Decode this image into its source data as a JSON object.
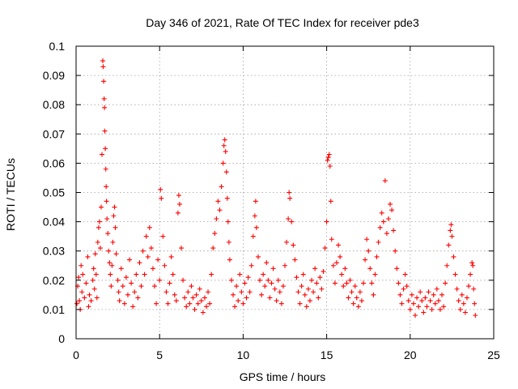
{
  "chart_data": {
    "type": "scatter",
    "title": "Day 346 of 2021, Rate Of TEC Index for receiver pde3",
    "xlabel": "GPS time / hours",
    "ylabel": "ROTI / TECUs",
    "xlim": [
      0,
      25
    ],
    "ylim": [
      0,
      0.1
    ],
    "xticks": [
      0,
      5,
      10,
      15,
      20,
      25
    ],
    "xtick_labels": [
      "0",
      "5",
      "10",
      "15",
      "20",
      "25"
    ],
    "yticks": [
      0,
      0.01,
      0.02,
      0.03,
      0.04,
      0.05,
      0.06,
      0.07,
      0.08,
      0.09,
      0.1
    ],
    "ytick_labels": [
      "0",
      "0.01",
      "0.02",
      "0.03",
      "0.04",
      "0.05",
      "0.06",
      "0.07",
      "0.08",
      "0.09",
      "0.1"
    ],
    "grid": true,
    "marker": "plus",
    "color": "#ff0000",
    "series": [
      {
        "points": [
          [
            0.05,
            0.012
          ],
          [
            0.1,
            0.018
          ],
          [
            0.15,
            0.021
          ],
          [
            0.2,
            0.013
          ],
          [
            0.25,
            0.01
          ],
          [
            0.3,
            0.025
          ],
          [
            0.35,
            0.016
          ],
          [
            0.4,
            0.022
          ],
          [
            0.5,
            0.014
          ],
          [
            0.6,
            0.019
          ],
          [
            0.7,
            0.028
          ],
          [
            0.75,
            0.011
          ],
          [
            0.8,
            0.015
          ],
          [
            0.9,
            0.013
          ],
          [
            1.0,
            0.02
          ],
          [
            1.05,
            0.024
          ],
          [
            1.1,
            0.017
          ],
          [
            1.15,
            0.029
          ],
          [
            1.2,
            0.022
          ],
          [
            1.25,
            0.014
          ],
          [
            1.3,
            0.033
          ],
          [
            1.35,
            0.038
          ],
          [
            1.4,
            0.04
          ],
          [
            1.45,
            0.031
          ],
          [
            1.5,
            0.045
          ],
          [
            1.55,
            0.063
          ],
          [
            1.6,
            0.095
          ],
          [
            1.62,
            0.093
          ],
          [
            1.65,
            0.088
          ],
          [
            1.68,
            0.082
          ],
          [
            1.7,
            0.079
          ],
          [
            1.72,
            0.071
          ],
          [
            1.75,
            0.065
          ],
          [
            1.78,
            0.058
          ],
          [
            1.8,
            0.052
          ],
          [
            1.82,
            0.047
          ],
          [
            1.85,
            0.041
          ],
          [
            1.9,
            0.036
          ],
          [
            1.95,
            0.03
          ],
          [
            2.0,
            0.026
          ],
          [
            2.05,
            0.022
          ],
          [
            2.1,
            0.018
          ],
          [
            2.15,
            0.025
          ],
          [
            2.2,
            0.033
          ],
          [
            2.25,
            0.042
          ],
          [
            2.3,
            0.045
          ],
          [
            2.35,
            0.038
          ],
          [
            2.4,
            0.029
          ],
          [
            2.5,
            0.02
          ],
          [
            2.55,
            0.016
          ],
          [
            2.6,
            0.013
          ],
          [
            2.7,
            0.024
          ],
          [
            2.8,
            0.018
          ],
          [
            2.9,
            0.012
          ],
          [
            3.0,
            0.021
          ],
          [
            3.1,
            0.015
          ],
          [
            3.2,
            0.027
          ],
          [
            3.3,
            0.019
          ],
          [
            3.4,
            0.011
          ],
          [
            3.5,
            0.016
          ],
          [
            3.6,
            0.022
          ],
          [
            3.7,
            0.014
          ],
          [
            3.8,
            0.026
          ],
          [
            3.9,
            0.018
          ],
          [
            4.0,
            0.03
          ],
          [
            4.1,
            0.022
          ],
          [
            4.2,
            0.035
          ],
          [
            4.3,
            0.028
          ],
          [
            4.4,
            0.038
          ],
          [
            4.5,
            0.031
          ],
          [
            4.6,
            0.024
          ],
          [
            4.7,
            0.018
          ],
          [
            4.8,
            0.012
          ],
          [
            4.9,
            0.027
          ],
          [
            5.0,
            0.02
          ],
          [
            5.05,
            0.051
          ],
          [
            5.1,
            0.048
          ],
          [
            5.2,
            0.035
          ],
          [
            5.3,
            0.025
          ],
          [
            5.4,
            0.016
          ],
          [
            5.5,
            0.012
          ],
          [
            5.6,
            0.019
          ],
          [
            5.7,
            0.028
          ],
          [
            5.8,
            0.022
          ],
          [
            5.9,
            0.015
          ],
          [
            6.0,
            0.013
          ],
          [
            6.1,
            0.043
          ],
          [
            6.15,
            0.049
          ],
          [
            6.2,
            0.046
          ],
          [
            6.3,
            0.031
          ],
          [
            6.4,
            0.02
          ],
          [
            6.5,
            0.014
          ],
          [
            6.6,
            0.011
          ],
          [
            6.7,
            0.016
          ],
          [
            6.8,
            0.012
          ],
          [
            6.9,
            0.018
          ],
          [
            7.0,
            0.014
          ],
          [
            7.1,
            0.01
          ],
          [
            7.2,
            0.015
          ],
          [
            7.3,
            0.012
          ],
          [
            7.4,
            0.017
          ],
          [
            7.5,
            0.013
          ],
          [
            7.6,
            0.009
          ],
          [
            7.7,
            0.014
          ],
          [
            7.8,
            0.011
          ],
          [
            7.9,
            0.016
          ],
          [
            8.0,
            0.012
          ],
          [
            8.1,
            0.022
          ],
          [
            8.2,
            0.031
          ],
          [
            8.3,
            0.036
          ],
          [
            8.4,
            0.041
          ],
          [
            8.5,
            0.047
          ],
          [
            8.6,
            0.044
          ],
          [
            8.7,
            0.052
          ],
          [
            8.8,
            0.06
          ],
          [
            8.85,
            0.066
          ],
          [
            8.9,
            0.068
          ],
          [
            8.95,
            0.064
          ],
          [
            9.0,
            0.057
          ],
          [
            9.05,
            0.048
          ],
          [
            9.1,
            0.04
          ],
          [
            9.15,
            0.033
          ],
          [
            9.2,
            0.027
          ],
          [
            9.3,
            0.02
          ],
          [
            9.4,
            0.015
          ],
          [
            9.5,
            0.011
          ],
          [
            9.6,
            0.018
          ],
          [
            9.7,
            0.013
          ],
          [
            9.8,
            0.022
          ],
          [
            9.9,
            0.016
          ],
          [
            10.0,
            0.012
          ],
          [
            10.1,
            0.019
          ],
          [
            10.2,
            0.014
          ],
          [
            10.3,
            0.021
          ],
          [
            10.4,
            0.016
          ],
          [
            10.5,
            0.025
          ],
          [
            10.6,
            0.035
          ],
          [
            10.7,
            0.042
          ],
          [
            10.75,
            0.047
          ],
          [
            10.8,
            0.038
          ],
          [
            10.9,
            0.028
          ],
          [
            11.0,
            0.02
          ],
          [
            11.1,
            0.015
          ],
          [
            11.2,
            0.022
          ],
          [
            11.3,
            0.018
          ],
          [
            11.4,
            0.026
          ],
          [
            11.5,
            0.02
          ],
          [
            11.6,
            0.014
          ],
          [
            11.7,
            0.019
          ],
          [
            11.8,
            0.024
          ],
          [
            11.9,
            0.017
          ],
          [
            12.0,
            0.013
          ],
          [
            12.1,
            0.02
          ],
          [
            12.2,
            0.016
          ],
          [
            12.3,
            0.012
          ],
          [
            12.4,
            0.018
          ],
          [
            12.5,
            0.025
          ],
          [
            12.6,
            0.033
          ],
          [
            12.7,
            0.041
          ],
          [
            12.75,
            0.05
          ],
          [
            12.8,
            0.048
          ],
          [
            12.9,
            0.04
          ],
          [
            13.0,
            0.032
          ],
          [
            13.1,
            0.027
          ],
          [
            13.2,
            0.021
          ],
          [
            13.3,
            0.016
          ],
          [
            13.4,
            0.012
          ],
          [
            13.5,
            0.018
          ],
          [
            13.6,
            0.022
          ],
          [
            13.7,
            0.015
          ],
          [
            13.8,
            0.011
          ],
          [
            13.9,
            0.017
          ],
          [
            14.0,
            0.013
          ],
          [
            14.1,
            0.02
          ],
          [
            14.2,
            0.016
          ],
          [
            14.3,
            0.024
          ],
          [
            14.4,
            0.019
          ],
          [
            14.5,
            0.014
          ],
          [
            14.6,
            0.021
          ],
          [
            14.7,
            0.017
          ],
          [
            14.8,
            0.023
          ],
          [
            14.9,
            0.031
          ],
          [
            15.0,
            0.04
          ],
          [
            15.05,
            0.061
          ],
          [
            15.1,
            0.062
          ],
          [
            15.15,
            0.063
          ],
          [
            15.2,
            0.059
          ],
          [
            15.25,
            0.047
          ],
          [
            15.3,
            0.034
          ],
          [
            15.4,
            0.025
          ],
          [
            15.5,
            0.019
          ],
          [
            15.6,
            0.026
          ],
          [
            15.7,
            0.032
          ],
          [
            15.8,
            0.028
          ],
          [
            15.9,
            0.022
          ],
          [
            16.0,
            0.018
          ],
          [
            16.1,
            0.024
          ],
          [
            16.2,
            0.019
          ],
          [
            16.3,
            0.014
          ],
          [
            16.4,
            0.02
          ],
          [
            16.5,
            0.016
          ],
          [
            16.6,
            0.012
          ],
          [
            16.7,
            0.018
          ],
          [
            16.8,
            0.014
          ],
          [
            16.9,
            0.011
          ],
          [
            17.0,
            0.016
          ],
          [
            17.1,
            0.013
          ],
          [
            17.2,
            0.019
          ],
          [
            17.3,
            0.027
          ],
          [
            17.4,
            0.034
          ],
          [
            17.5,
            0.03
          ],
          [
            17.6,
            0.024
          ],
          [
            17.7,
            0.019
          ],
          [
            17.8,
            0.015
          ],
          [
            17.9,
            0.022
          ],
          [
            18.0,
            0.028
          ],
          [
            18.1,
            0.033
          ],
          [
            18.2,
            0.038
          ],
          [
            18.3,
            0.043
          ],
          [
            18.4,
            0.04
          ],
          [
            18.5,
            0.054
          ],
          [
            18.6,
            0.036
          ],
          [
            18.7,
            0.041
          ],
          [
            18.8,
            0.046
          ],
          [
            18.9,
            0.044
          ],
          [
            19.0,
            0.037
          ],
          [
            19.1,
            0.03
          ],
          [
            19.2,
            0.024
          ],
          [
            19.3,
            0.019
          ],
          [
            19.4,
            0.015
          ],
          [
            19.5,
            0.012
          ],
          [
            19.6,
            0.017
          ],
          [
            19.7,
            0.022
          ],
          [
            19.8,
            0.018
          ],
          [
            19.9,
            0.013
          ],
          [
            20.0,
            0.01
          ],
          [
            20.1,
            0.015
          ],
          [
            20.2,
            0.012
          ],
          [
            20.3,
            0.008
          ],
          [
            20.4,
            0.014
          ],
          [
            20.5,
            0.011
          ],
          [
            20.6,
            0.016
          ],
          [
            20.7,
            0.013
          ],
          [
            20.8,
            0.009
          ],
          [
            20.9,
            0.014
          ],
          [
            21.0,
            0.011
          ],
          [
            21.1,
            0.016
          ],
          [
            21.2,
            0.013
          ],
          [
            21.3,
            0.01
          ],
          [
            21.4,
            0.015
          ],
          [
            21.5,
            0.012
          ],
          [
            21.6,
            0.017
          ],
          [
            21.7,
            0.013
          ],
          [
            21.8,
            0.01
          ],
          [
            21.9,
            0.015
          ],
          [
            22.0,
            0.011
          ],
          [
            22.1,
            0.019
          ],
          [
            22.2,
            0.025
          ],
          [
            22.3,
            0.032
          ],
          [
            22.4,
            0.037
          ],
          [
            22.45,
            0.039
          ],
          [
            22.5,
            0.035
          ],
          [
            22.6,
            0.028
          ],
          [
            22.7,
            0.022
          ],
          [
            22.8,
            0.017
          ],
          [
            22.9,
            0.013
          ],
          [
            23.0,
            0.01
          ],
          [
            23.1,
            0.015
          ],
          [
            23.2,
            0.012
          ],
          [
            23.3,
            0.009
          ],
          [
            23.4,
            0.014
          ],
          [
            23.5,
            0.018
          ],
          [
            23.6,
            0.022
          ],
          [
            23.7,
            0.026
          ],
          [
            23.75,
            0.025
          ],
          [
            23.8,
            0.017
          ],
          [
            23.85,
            0.012
          ],
          [
            23.9,
            0.008
          ]
        ]
      }
    ]
  }
}
